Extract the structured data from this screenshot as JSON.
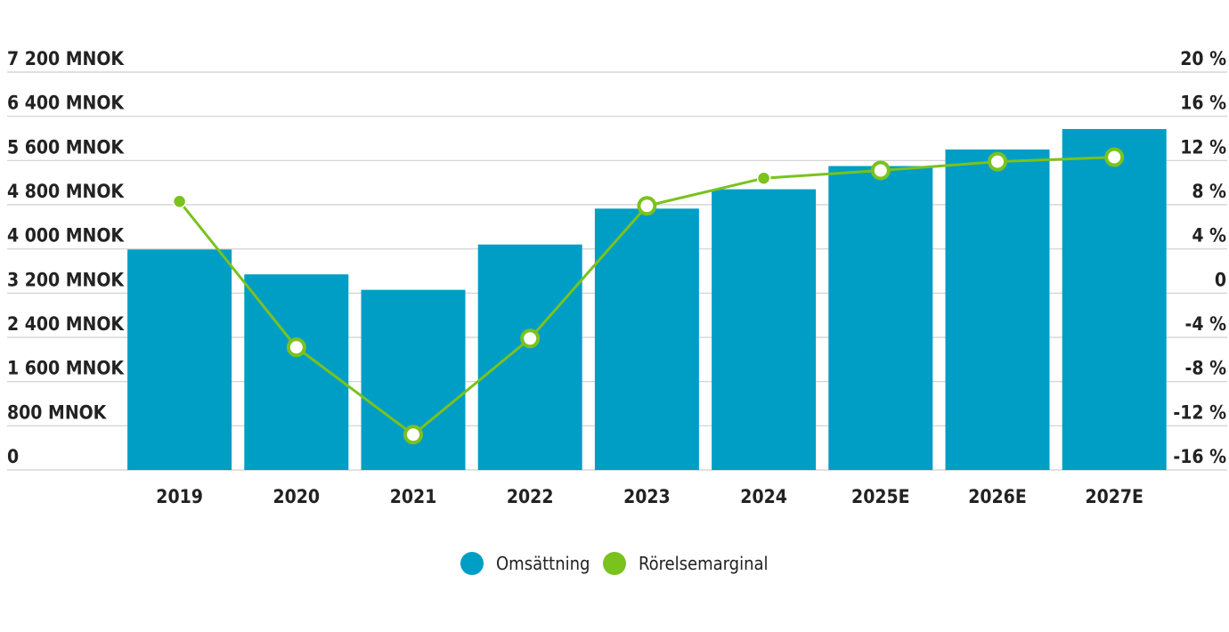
{
  "chart_data": {
    "type": "bar+line",
    "categories": [
      "2019",
      "2020",
      "2021",
      "2022",
      "2023",
      "2024",
      "2025E",
      "2026E",
      "2027E"
    ],
    "series": [
      {
        "name": "Omsättning",
        "type": "bar",
        "axis": "left",
        "color": "#009ec4",
        "values": [
          3990,
          3540,
          3260,
          4080,
          4730,
          5080,
          5500,
          5800,
          6170
        ]
      },
      {
        "name": "Rörelsemarginal",
        "type": "line",
        "axis": "right",
        "color": "#7ac21e",
        "values": [
          8.3,
          -4.9,
          -12.8,
          -4.1,
          7.9,
          10.4,
          11.1,
          11.9,
          12.3
        ],
        "markers": [
          "filled",
          "ring",
          "ring",
          "ring",
          "ring",
          "filled",
          "ring",
          "ring",
          "ring"
        ]
      }
    ],
    "y_left": {
      "ylim": [
        0,
        7200
      ],
      "ticks": [
        0,
        800,
        1600,
        2400,
        3200,
        4000,
        4800,
        5600,
        6400,
        7200
      ],
      "tick_labels": [
        "0",
        "800 MNOK",
        "1 600 MNOK",
        "2 400 MNOK",
        "3 200 MNOK",
        "4 000 MNOK",
        "4 800 MNOK",
        "5 600 MNOK",
        "6 400 MNOK",
        "7 200 MNOK"
      ]
    },
    "y_right": {
      "ylim": [
        -16,
        20
      ],
      "ticks": [
        -16,
        -12,
        -8,
        -4,
        0,
        4,
        8,
        12,
        16,
        20
      ],
      "tick_labels": [
        "-16 %",
        "-12 %",
        "-8 %",
        "-4 %",
        "0",
        "4 %",
        "8 %",
        "12 %",
        "16 %",
        "20 %"
      ]
    },
    "grid": true,
    "legend": {
      "position": "bottom-center",
      "items": [
        {
          "label": "Omsättning",
          "color": "#009ec4"
        },
        {
          "label": "Rörelsemarginal",
          "color": "#7ac21e"
        }
      ]
    }
  }
}
